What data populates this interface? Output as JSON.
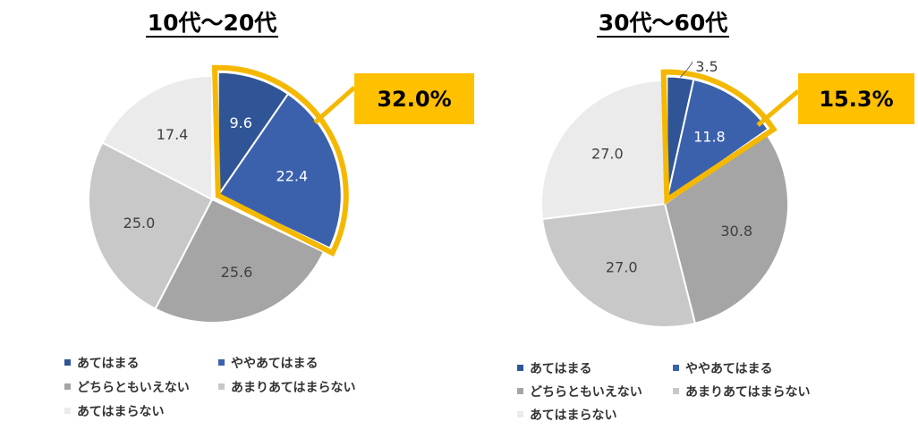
{
  "colors": {
    "series": [
      "#2f5597",
      "#3b61ad",
      "#a5a5a5",
      "#c8c8c8",
      "#ebebeb"
    ],
    "label_light": "#ffffff",
    "label_dark": "#404040",
    "highlight": "#f5b800"
  },
  "chart_data": [
    {
      "type": "pie",
      "title": "10代～20代",
      "categories": [
        "あてはまる",
        "ややあてはまる",
        "どちらともいえない",
        "あまりあてはまらない",
        "あてはまらない"
      ],
      "values": [
        9.6,
        22.4,
        25.6,
        25.0,
        17.4
      ],
      "highlight_indices": [
        0,
        1
      ],
      "callout": "32.0%",
      "legend": "bottom"
    },
    {
      "type": "pie",
      "title": "30代～60代",
      "categories": [
        "あてはまる",
        "ややあてはまる",
        "どちらともいえない",
        "あまりあてはまらない",
        "あてはまらない"
      ],
      "values": [
        3.5,
        11.8,
        30.8,
        27.0,
        27.0
      ],
      "highlight_indices": [
        0,
        1
      ],
      "callout": "15.3%",
      "legend": "bottom"
    }
  ]
}
